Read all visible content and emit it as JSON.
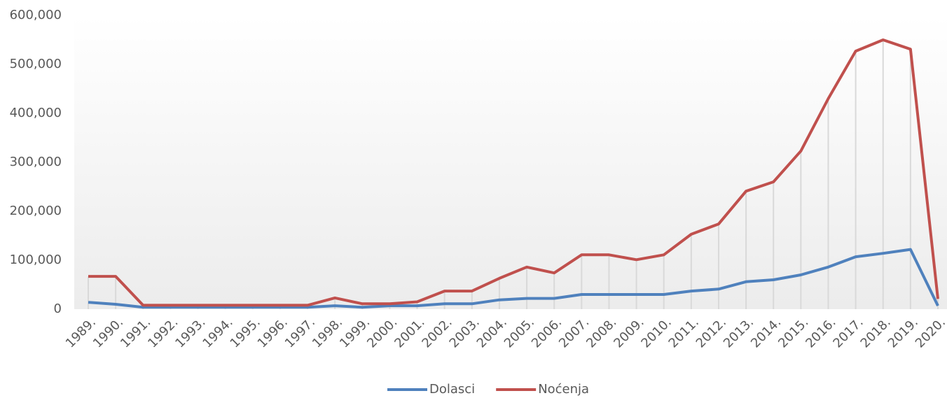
{
  "chart_data": {
    "type": "line",
    "categories": [
      "1989.",
      "1990.",
      "1991.",
      "1992.",
      "1993.",
      "1994.",
      "1995.",
      "1996.",
      "1997.",
      "1998.",
      "1999.",
      "2000.",
      "2001.",
      "2002.",
      "2003.",
      "2004.",
      "2005.",
      "2006.",
      "2007.",
      "2008.",
      "2009.",
      "2010.",
      "2011.",
      "2012.",
      "2013.",
      "2014.",
      "2015.",
      "2016.",
      "2017.",
      "2018.",
      "2019.",
      "2020."
    ],
    "series": [
      {
        "name": "Dolasci",
        "color": "#4f81bd",
        "values": [
          14000,
          10000,
          4000,
          4000,
          4000,
          4000,
          4000,
          4000,
          4000,
          7000,
          4000,
          7000,
          7000,
          11000,
          11000,
          19000,
          22000,
          22000,
          30000,
          30000,
          30000,
          30000,
          37000,
          41000,
          56000,
          60000,
          70000,
          86000,
          107000,
          114000,
          122000,
          7000
        ]
      },
      {
        "name": "Noćenja",
        "color": "#c0504d",
        "values": [
          67000,
          67000,
          8000,
          8000,
          8000,
          8000,
          8000,
          8000,
          8000,
          23000,
          11000,
          11000,
          15000,
          37000,
          37000,
          63000,
          86000,
          74000,
          111000,
          111000,
          101000,
          111000,
          153000,
          174000,
          241000,
          260000,
          323000,
          430000,
          527000,
          550000,
          531000,
          21000
        ]
      }
    ],
    "ylim": [
      0,
      600000
    ],
    "yticks": [
      0,
      {
        "value": 100000,
        "label": "100,000"
      },
      {
        "value": 200000,
        "label": "200,000"
      },
      {
        "value": 300000,
        "label": "300,000"
      },
      {
        "value": 400000,
        "label": "400,000"
      },
      {
        "value": 500000,
        "label": "500,000"
      },
      {
        "value": 600000,
        "label": "600,000"
      }
    ],
    "grid": false,
    "drop_lines": true,
    "legend": "bottom"
  }
}
